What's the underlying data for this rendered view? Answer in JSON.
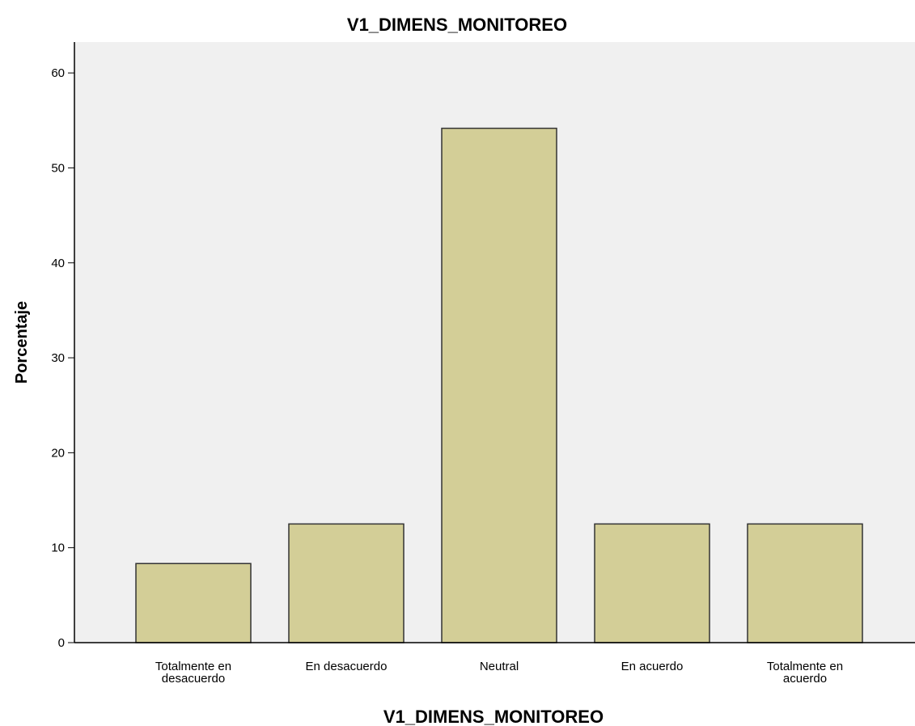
{
  "chart_data": {
    "type": "bar",
    "title": "V1_DIMENS_MONITOREO",
    "x_label": "V1_DIMENS_MONITOREO",
    "y_label": "Porcentaje",
    "categories": [
      "Totalmente en desacuerdo",
      "En desacuerdo",
      "Neutral",
      "En acuerdo",
      "Totalmente en acuerdo"
    ],
    "values": [
      8.33,
      12.5,
      54.17,
      12.5,
      12.5
    ],
    "color": "#d3ce97",
    "ylim": [
      0,
      63.25
    ],
    "yticks": [
      0,
      10,
      20,
      30,
      40,
      50,
      60
    ],
    "grid": false
  }
}
